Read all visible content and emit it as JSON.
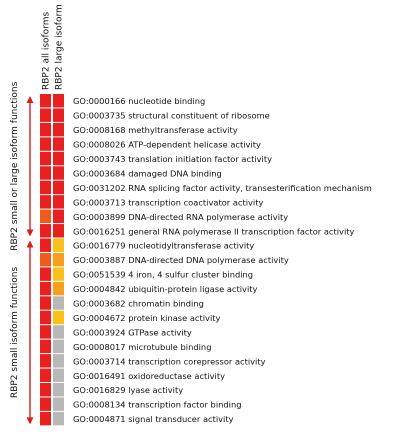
{
  "columns": [
    "RBP2 all isoforms",
    "RBP2 large isoform"
  ],
  "side_labels": {
    "upper": "RBP2 small or large isoform functions",
    "lower": "RBP2 small isoform functions"
  },
  "colors": {
    "red": "#e8201f",
    "orange_red": "#ef5a1f",
    "orange": "#f7a01e",
    "yellow_orange": "#f9c11a",
    "gray": "#b8b8b8",
    "arrow": "#d81e1e"
  },
  "rows": [
    {
      "go": "GO:0000166 nucleotide binding",
      "cells": [
        "red",
        "red"
      ]
    },
    {
      "go": "GO:0003735 structural constituent of ribosome",
      "cells": [
        "red",
        "red"
      ]
    },
    {
      "go": "GO:0008168 methyltransferase activity",
      "cells": [
        "red",
        "red"
      ]
    },
    {
      "go": "GO:0008026 ATP-dependent helicase activity",
      "cells": [
        "red",
        "red"
      ]
    },
    {
      "go": "GO:0003743 translation initiation factor activity",
      "cells": [
        "red",
        "red"
      ]
    },
    {
      "go": "GO:0003684 damaged DNA binding",
      "cells": [
        "red",
        "red"
      ]
    },
    {
      "go": "GO:0031202 RNA splicing factor activity, transesterification mechanism",
      "cells": [
        "red",
        "red"
      ]
    },
    {
      "go": "GO:0003713 transcription coactivator activity",
      "cells": [
        "red",
        "red"
      ]
    },
    {
      "go": "GO:0003899 DNA-directed RNA polymerase activity",
      "cells": [
        "orange_red",
        "red"
      ]
    },
    {
      "go": "GO:0016251 general RNA polymerase II transcription factor activity",
      "cells": [
        "red",
        "red"
      ]
    },
    {
      "go": "GO:0016779 nucleotidyltransferase activity",
      "cells": [
        "red",
        "yellow_orange"
      ]
    },
    {
      "go": "GO:0003887 DNA-directed DNA polymerase activity",
      "cells": [
        "orange_red",
        "orange"
      ]
    },
    {
      "go": "GO:0051539 4 iron, 4 sulfur cluster binding",
      "cells": [
        "red",
        "yellow_orange"
      ]
    },
    {
      "go": "GO:0004842 ubiquitin-protein ligase activity",
      "cells": [
        "red",
        "orange"
      ]
    },
    {
      "go": "GO:0003682 chromatin binding",
      "cells": [
        "red",
        "gray"
      ]
    },
    {
      "go": "GO:0004672 protein kinase activity",
      "cells": [
        "red",
        "yellow_orange"
      ]
    },
    {
      "go": "GO:0003924 GTPase activity",
      "cells": [
        "red",
        "gray"
      ]
    },
    {
      "go": "GO:0008017 microtubule binding",
      "cells": [
        "red",
        "gray"
      ]
    },
    {
      "go": "GO:0003714 transcription corepressor activity",
      "cells": [
        "red",
        "gray"
      ]
    },
    {
      "go": "GO:0016491 oxidoreductase activity",
      "cells": [
        "red",
        "gray"
      ]
    },
    {
      "go": "GO:0016829 lyase activity",
      "cells": [
        "red",
        "gray"
      ]
    },
    {
      "go": "GO:0008134 transcription factor binding",
      "cells": [
        "red",
        "gray"
      ]
    },
    {
      "go": "GO:0004871 signal transducer activity",
      "cells": [
        "red",
        "gray"
      ]
    }
  ]
}
